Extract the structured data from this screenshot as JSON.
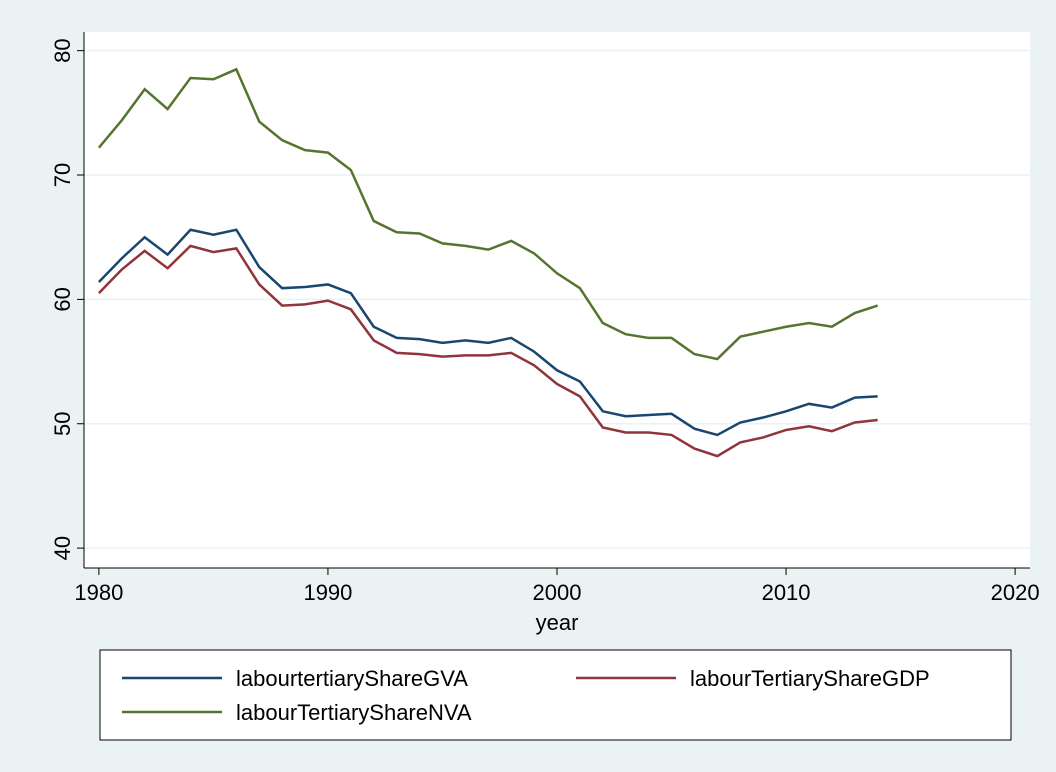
{
  "chart_data": {
    "type": "line",
    "x_label": "year",
    "x": [
      1980,
      1981,
      1982,
      1983,
      1984,
      1985,
      1986,
      1987,
      1988,
      1989,
      1990,
      1991,
      1992,
      1993,
      1994,
      1995,
      1996,
      1997,
      1998,
      1999,
      2000,
      2001,
      2002,
      2003,
      2004,
      2005,
      2006,
      2007,
      2008,
      2009,
      2010,
      2011,
      2012,
      2013,
      2014
    ],
    "series": [
      {
        "name": "labourtertiaryShareGVA",
        "color": "#1a476f",
        "values": [
          61.4,
          63.3,
          65.0,
          63.6,
          65.6,
          65.2,
          65.6,
          62.6,
          60.9,
          61.0,
          61.2,
          60.5,
          57.8,
          56.9,
          56.8,
          56.5,
          56.7,
          56.5,
          56.9,
          55.8,
          54.3,
          53.4,
          51.0,
          50.6,
          50.7,
          50.8,
          49.6,
          49.1,
          50.1,
          50.5,
          51.0,
          51.6,
          51.3,
          52.1,
          52.2
        ]
      },
      {
        "name": "labourTertiaryShareGDP",
        "color": "#90353b",
        "values": [
          60.5,
          62.4,
          63.9,
          62.5,
          64.3,
          63.8,
          64.1,
          61.2,
          59.5,
          59.6,
          59.9,
          59.2,
          56.7,
          55.7,
          55.6,
          55.4,
          55.5,
          55.5,
          55.7,
          54.7,
          53.2,
          52.2,
          49.7,
          49.3,
          49.3,
          49.1,
          48.0,
          47.4,
          48.5,
          48.9,
          49.5,
          49.8,
          49.4,
          50.1,
          50.3
        ]
      },
      {
        "name": "labourTertiaryShareNVA",
        "color": "#55752f",
        "values": [
          72.2,
          74.4,
          76.9,
          75.3,
          77.8,
          77.7,
          78.5,
          74.3,
          72.8,
          72.0,
          71.8,
          70.4,
          66.3,
          65.4,
          65.3,
          64.5,
          64.3,
          64.0,
          64.7,
          63.7,
          62.1,
          60.9,
          58.1,
          57.2,
          56.9,
          56.9,
          55.6,
          55.2,
          57.0,
          57.4,
          57.8,
          58.1,
          57.8,
          58.9,
          59.5
        ]
      }
    ],
    "xlim": [
      1979.35,
      2020.65
    ],
    "xticks": [
      1980,
      1990,
      2000,
      2010,
      2020
    ],
    "ylim": [
      38.4,
      81.5
    ],
    "yticks": [
      40,
      50,
      60,
      70,
      80
    ],
    "grid": true,
    "legend": "bottom"
  }
}
